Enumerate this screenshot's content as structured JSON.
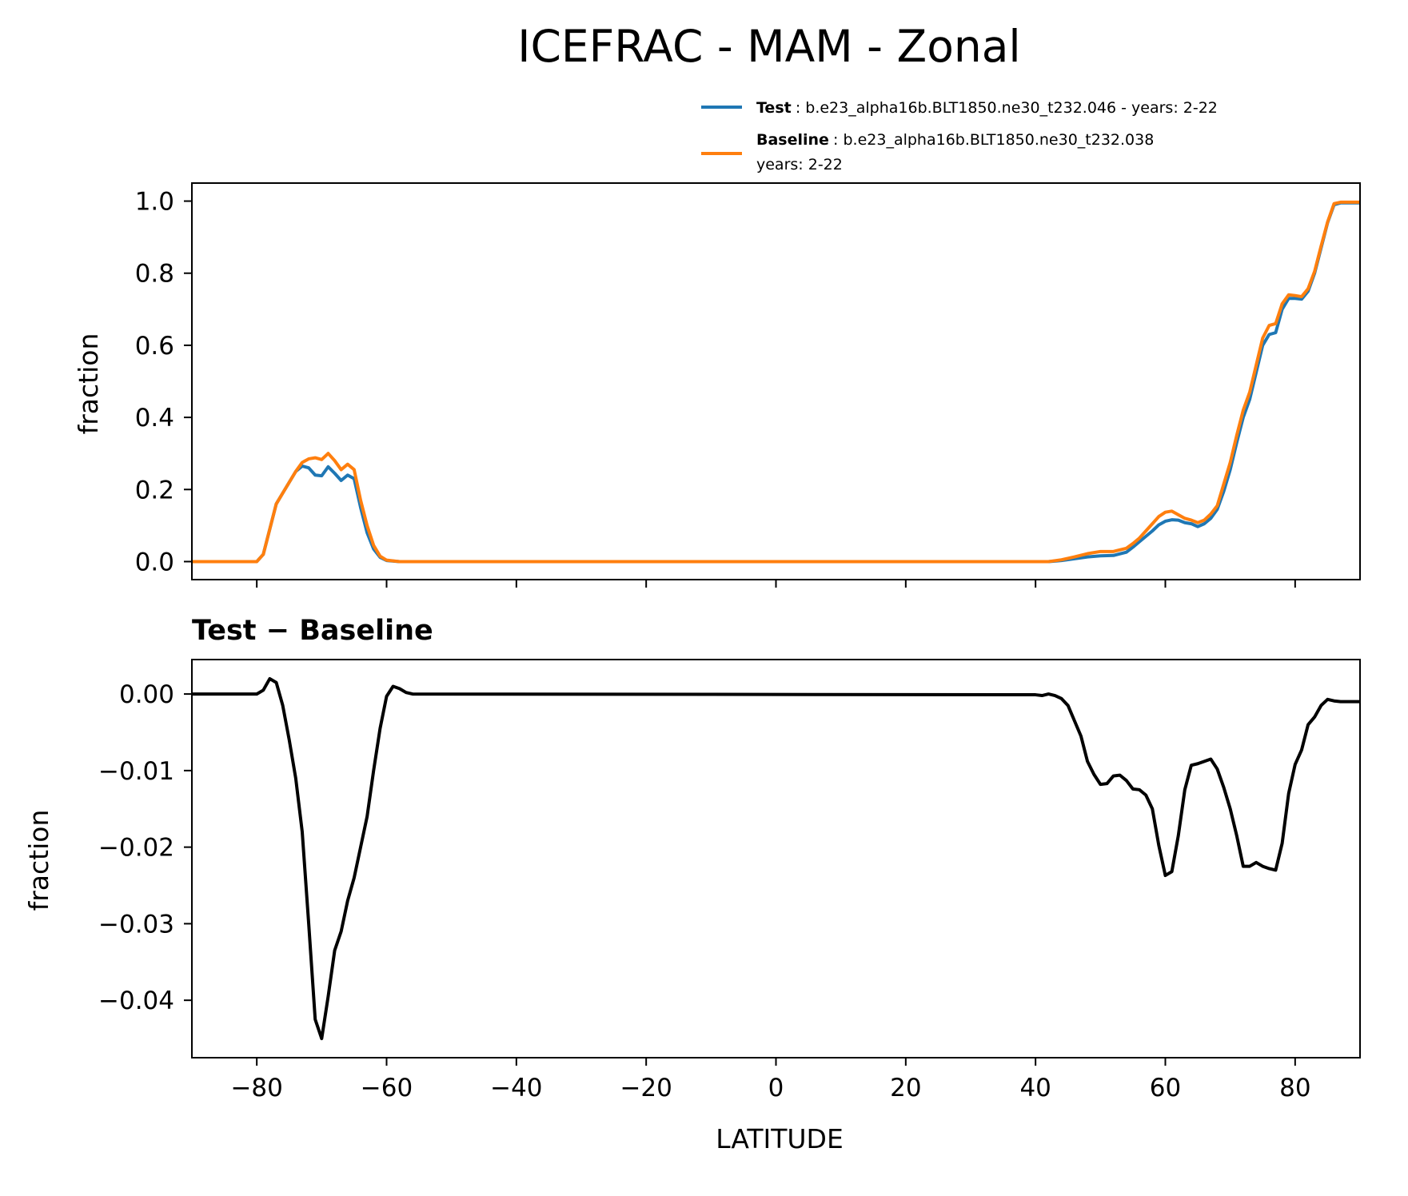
{
  "chart_data": {
    "type": "line",
    "title": "ICEFRAC - MAM - Zonal",
    "xlabel": "LATITUDE",
    "xlim": [
      -90,
      90
    ],
    "xticks": [
      -80,
      -60,
      -40,
      -20,
      0,
      20,
      40,
      60,
      80
    ],
    "xtick_labels": [
      "−80",
      "−60",
      "−40",
      "−20",
      "0",
      "20",
      "40",
      "60",
      "80"
    ],
    "grid": false,
    "legend": {
      "placement": "top-right, above top panel",
      "entries": [
        {
          "name": "Test",
          "desc": ": b.e23_alpha16b.BLT1850.ne30_t232.046 - years: 2-22",
          "color": "#1f77b4"
        },
        {
          "name": "Baseline",
          "desc": ": b.e23_alpha16b.BLT1850.ne30_t232.038",
          "desc2": "years: 2-22",
          "color": "#ff7f0e"
        }
      ]
    },
    "panels": [
      {
        "ylabel": "fraction",
        "ylim": [
          -0.05,
          1.05
        ],
        "yticks": [
          0,
          0.2,
          0.4,
          0.6,
          0.8,
          1.0
        ],
        "ytick_labels": [
          "0.0",
          "0.2",
          "0.4",
          "0.6",
          "0.8",
          "1.0"
        ],
        "series": [
          {
            "name": "Test",
            "color": "#1f77b4",
            "points": [
              [
                -90,
                0
              ],
              [
                -80,
                0
              ],
              [
                -79,
                0.02
              ],
              [
                -78,
                0.09
              ],
              [
                -77,
                0.16
              ],
              [
                -76,
                0.19
              ],
              [
                -75,
                0.22
              ],
              [
                -74,
                0.25
              ],
              [
                -73,
                0.265
              ],
              [
                -72,
                0.26
              ],
              [
                -71,
                0.24
              ],
              [
                -70,
                0.238
              ],
              [
                -69,
                0.263
              ],
              [
                -68,
                0.245
              ],
              [
                -67,
                0.225
              ],
              [
                -66,
                0.24
              ],
              [
                -65,
                0.23
              ],
              [
                -64,
                0.15
              ],
              [
                -63,
                0.08
              ],
              [
                -62,
                0.035
              ],
              [
                -61,
                0.012
              ],
              [
                -60,
                0.003
              ],
              [
                -58,
                0
              ],
              [
                40,
                0
              ],
              [
                42,
                0
              ],
              [
                44,
                0.003
              ],
              [
                46,
                0.008
              ],
              [
                48,
                0.013
              ],
              [
                50,
                0.016
              ],
              [
                52,
                0.017
              ],
              [
                54,
                0.026
              ],
              [
                55,
                0.04
              ],
              [
                56,
                0.055
              ],
              [
                57,
                0.07
              ],
              [
                58,
                0.085
              ],
              [
                59,
                0.102
              ],
              [
                60,
                0.112
              ],
              [
                61,
                0.116
              ],
              [
                62,
                0.115
              ],
              [
                63,
                0.108
              ],
              [
                64,
                0.105
              ],
              [
                65,
                0.097
              ],
              [
                66,
                0.105
              ],
              [
                67,
                0.12
              ],
              [
                68,
                0.145
              ],
              [
                69,
                0.195
              ],
              [
                70,
                0.255
              ],
              [
                71,
                0.33
              ],
              [
                72,
                0.4
              ],
              [
                73,
                0.45
              ],
              [
                74,
                0.525
              ],
              [
                75,
                0.6
              ],
              [
                76,
                0.63
              ],
              [
                77,
                0.635
              ],
              [
                78,
                0.7
              ],
              [
                79,
                0.73
              ],
              [
                80,
                0.73
              ],
              [
                81,
                0.728
              ],
              [
                82,
                0.75
              ],
              [
                83,
                0.8
              ],
              [
                84,
                0.87
              ],
              [
                85,
                0.94
              ],
              [
                86,
                0.99
              ],
              [
                87,
                0.995
              ],
              [
                90,
                0.995
              ]
            ]
          },
          {
            "name": "Baseline",
            "color": "#ff7f0e",
            "points": [
              [
                -90,
                0
              ],
              [
                -80,
                0
              ],
              [
                -79,
                0.02
              ],
              [
                -78,
                0.09
              ],
              [
                -77,
                0.16
              ],
              [
                -76,
                0.19
              ],
              [
                -75,
                0.22
              ],
              [
                -74,
                0.25
              ],
              [
                -73,
                0.275
              ],
              [
                -72,
                0.285
              ],
              [
                -71,
                0.288
              ],
              [
                -70,
                0.283
              ],
              [
                -69,
                0.3
              ],
              [
                -68,
                0.28
              ],
              [
                -67,
                0.255
              ],
              [
                -66,
                0.27
              ],
              [
                -65,
                0.255
              ],
              [
                -64,
                0.17
              ],
              [
                -63,
                0.1
              ],
              [
                -62,
                0.045
              ],
              [
                -61,
                0.015
              ],
              [
                -60,
                0.004
              ],
              [
                -58,
                0
              ],
              [
                40,
                0
              ],
              [
                42,
                0
              ],
              [
                44,
                0.005
              ],
              [
                46,
                0.013
              ],
              [
                48,
                0.022
              ],
              [
                50,
                0.028
              ],
              [
                52,
                0.028
              ],
              [
                54,
                0.037
              ],
              [
                55,
                0.05
              ],
              [
                56,
                0.065
              ],
              [
                57,
                0.085
              ],
              [
                58,
                0.105
              ],
              [
                59,
                0.125
              ],
              [
                60,
                0.137
              ],
              [
                61,
                0.14
              ],
              [
                62,
                0.13
              ],
              [
                63,
                0.12
              ],
              [
                64,
                0.115
              ],
              [
                65,
                0.108
              ],
              [
                66,
                0.115
              ],
              [
                67,
                0.132
              ],
              [
                68,
                0.155
              ],
              [
                69,
                0.215
              ],
              [
                70,
                0.275
              ],
              [
                71,
                0.35
              ],
              [
                72,
                0.42
              ],
              [
                73,
                0.47
              ],
              [
                74,
                0.545
              ],
              [
                75,
                0.62
              ],
              [
                76,
                0.655
              ],
              [
                77,
                0.66
              ],
              [
                78,
                0.715
              ],
              [
                79,
                0.74
              ],
              [
                80,
                0.738
              ],
              [
                81,
                0.735
              ],
              [
                82,
                0.757
              ],
              [
                83,
                0.805
              ],
              [
                84,
                0.875
              ],
              [
                85,
                0.942
              ],
              [
                86,
                0.993
              ],
              [
                87,
                0.997
              ],
              [
                90,
                0.997
              ]
            ]
          }
        ]
      },
      {
        "subtitle": "Test − Baseline",
        "ylabel": "fraction",
        "ylim": [
          -0.0475,
          0.0045
        ],
        "yticks": [
          0,
          -0.01,
          -0.02,
          -0.03,
          -0.04
        ],
        "ytick_labels": [
          "0.00",
          "−0.01",
          "−0.02",
          "−0.03",
          "−0.04"
        ],
        "series": [
          {
            "name": "Test − Baseline",
            "color": "#000000",
            "points": [
              [
                -90,
                0
              ],
              [
                -80,
                0
              ],
              [
                -79,
                0.0005
              ],
              [
                -78,
                0.002
              ],
              [
                -77,
                0.0015
              ],
              [
                -76,
                -0.0015
              ],
              [
                -75,
                -0.006
              ],
              [
                -74,
                -0.011
              ],
              [
                -73,
                -0.018
              ],
              [
                -72,
                -0.03
              ],
              [
                -71,
                -0.0425
              ],
              [
                -70,
                -0.045
              ],
              [
                -69,
                -0.0395
              ],
              [
                -68,
                -0.0335
              ],
              [
                -67,
                -0.031
              ],
              [
                -66,
                -0.027
              ],
              [
                -65,
                -0.024
              ],
              [
                -64,
                -0.02
              ],
              [
                -63,
                -0.016
              ],
              [
                -62,
                -0.01
              ],
              [
                -61,
                -0.0045
              ],
              [
                -60,
                -0.0003
              ],
              [
                -59,
                0.001
              ],
              [
                -58,
                0.0007
              ],
              [
                -57,
                0.0002
              ],
              [
                -56,
                0
              ],
              [
                40,
                -0.0001
              ],
              [
                41,
                -0.0002
              ],
              [
                42,
                0
              ],
              [
                43,
                -0.0002
              ],
              [
                44,
                -0.0006
              ],
              [
                45,
                -0.0015
              ],
              [
                46,
                -0.0035
              ],
              [
                47,
                -0.0055
              ],
              [
                48,
                -0.0088
              ],
              [
                49,
                -0.0105
              ],
              [
                50,
                -0.0118
              ],
              [
                51,
                -0.0117
              ],
              [
                52,
                -0.0107
              ],
              [
                53,
                -0.0106
              ],
              [
                54,
                -0.0113
              ],
              [
                55,
                -0.0124
              ],
              [
                56,
                -0.0125
              ],
              [
                57,
                -0.0132
              ],
              [
                58,
                -0.015
              ],
              [
                59,
                -0.0198
              ],
              [
                60,
                -0.0237
              ],
              [
                61,
                -0.0232
              ],
              [
                62,
                -0.0185
              ],
              [
                63,
                -0.0125
              ],
              [
                64,
                -0.0093
              ],
              [
                65,
                -0.0091
              ],
              [
                66,
                -0.0088
              ],
              [
                67,
                -0.0085
              ],
              [
                68,
                -0.0098
              ],
              [
                69,
                -0.0122
              ],
              [
                70,
                -0.015
              ],
              [
                71,
                -0.0185
              ],
              [
                72,
                -0.0225
              ],
              [
                73,
                -0.0225
              ],
              [
                74,
                -0.022
              ],
              [
                75,
                -0.0225
              ],
              [
                76,
                -0.0228
              ],
              [
                77,
                -0.023
              ],
              [
                78,
                -0.0195
              ],
              [
                79,
                -0.013
              ],
              [
                80,
                -0.0092
              ],
              [
                81,
                -0.0073
              ],
              [
                82,
                -0.004
              ],
              [
                83,
                -0.003
              ],
              [
                84,
                -0.0015
              ],
              [
                85,
                -0.0007
              ],
              [
                86,
                -0.0009
              ],
              [
                87,
                -0.001
              ],
              [
                88,
                -0.001
              ],
              [
                89,
                -0.001
              ],
              [
                90,
                -0.001
              ]
            ]
          }
        ]
      }
    ]
  }
}
